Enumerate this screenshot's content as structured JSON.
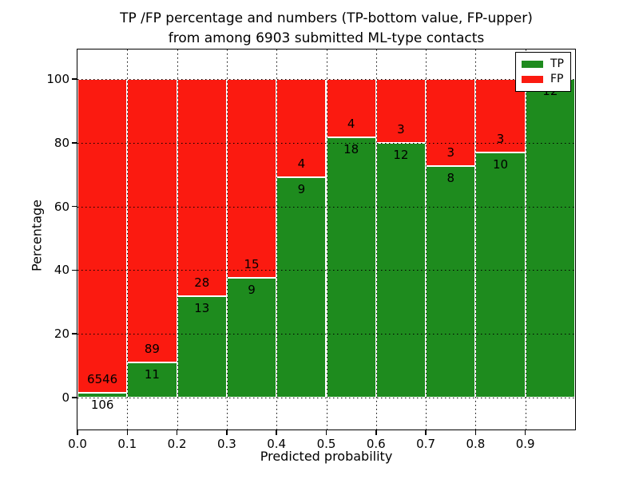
{
  "title": {
    "line1": "TP /FP percentage and numbers (TP-bottom value, FP-upper)",
    "line2": "from among 6903 submitted ML-type contacts"
  },
  "axes": {
    "xlabel": "Predicted probability",
    "ylabel": "Percentage",
    "x_tick_labels": [
      "0.0",
      "0.1",
      "0.2",
      "0.3",
      "0.4",
      "0.5",
      "0.6",
      "0.7",
      "0.8",
      "0.9"
    ],
    "y_tick_labels": [
      "0",
      "20",
      "40",
      "60",
      "80",
      "100"
    ],
    "y_tick_values": [
      0,
      20,
      40,
      60,
      80,
      100
    ],
    "grid_y_values": [
      0,
      20,
      40,
      60,
      80,
      100
    ]
  },
  "legend": {
    "position": "upper right",
    "items": [
      {
        "label": "TP",
        "color": "#1e8b1e"
      },
      {
        "label": "FP",
        "color": "#fb1a10"
      }
    ]
  },
  "colors": {
    "tp": "#1e8b1e",
    "fp": "#fb1a10",
    "bar_edge": "#ffffff",
    "grid": "#000000",
    "background": "#ffffff",
    "text": "#000000"
  },
  "chart_data": {
    "type": "bar",
    "stacked": true,
    "normalized_to_percent": true,
    "title": "TP /FP percentage and numbers (TP-bottom value, FP-upper) from among 6903 submitted ML-type contacts",
    "xlabel": "Predicted probability",
    "ylabel": "Percentage",
    "total_contacts": 6903,
    "bin_width": 0.1,
    "categories": [
      "0.0",
      "0.1",
      "0.2",
      "0.3",
      "0.4",
      "0.5",
      "0.6",
      "0.7",
      "0.8",
      "0.9"
    ],
    "series": [
      {
        "name": "TP",
        "color": "#1e8b1e",
        "counts": [
          106,
          11,
          13,
          9,
          9,
          18,
          12,
          8,
          10,
          12
        ]
      },
      {
        "name": "FP",
        "color": "#fb1a10",
        "counts": [
          6546,
          89,
          28,
          15,
          4,
          4,
          3,
          3,
          3,
          0
        ]
      }
    ],
    "tp_percentages": [
      1.6,
      11.0,
      31.7,
      37.5,
      69.2,
      81.8,
      80.0,
      72.7,
      76.9,
      100.0
    ],
    "bar_value_labels": {
      "tp": [
        "106",
        "11",
        "13",
        "9",
        "9",
        "18",
        "12",
        "8",
        "10",
        "12"
      ],
      "fp": [
        "6546",
        "89",
        "28",
        "15",
        "4",
        "4",
        "3",
        "3",
        "3",
        ""
      ]
    },
    "xlim": [
      0.0,
      1.0
    ],
    "ylim": [
      0,
      100
    ],
    "grid": true,
    "grid_style": "dotted",
    "legend_position": "upper right"
  }
}
